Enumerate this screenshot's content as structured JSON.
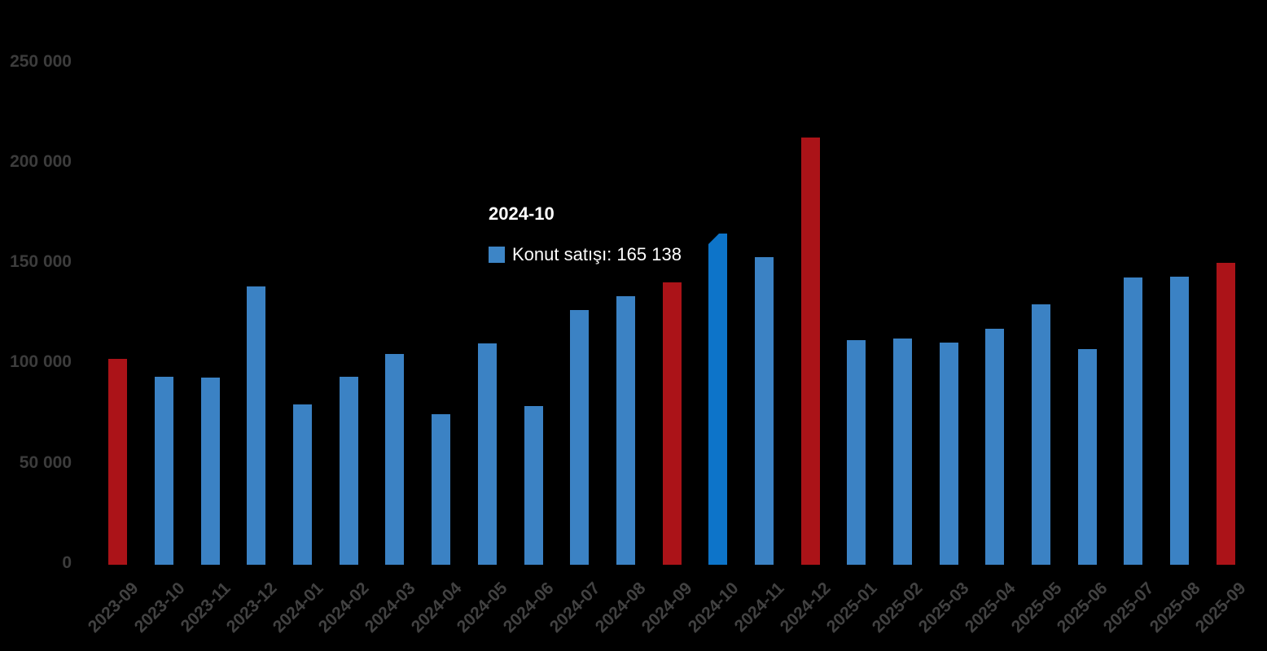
{
  "style": {
    "background": "#000000",
    "bar_blue": "#3b82c4",
    "bar_red": "#ab1318",
    "bar_hover": "#0d74c9",
    "swatch_color": "#3d85c6",
    "y_axis_text_color": "#3c3c3c",
    "x_axis_text_color": "#424242",
    "tooltip_text_color": "#ffffff"
  },
  "chart_data": {
    "type": "bar",
    "title": "",
    "xlabel": "",
    "ylabel": "",
    "grid": false,
    "legend_position": "none",
    "background": "black",
    "categories": [
      "2023-09",
      "2023-10",
      "2023-11",
      "2023-12",
      "2024-01",
      "2024-02",
      "2024-03",
      "2024-04",
      "2024-05",
      "2024-06",
      "2024-07",
      "2024-08",
      "2024-09",
      "2024-10",
      "2024-11",
      "2024-12",
      "2025-01",
      "2025-02",
      "2025-03",
      "2025-04",
      "2025-05",
      "2025-06",
      "2025-07",
      "2025-08",
      "2025-09"
    ],
    "series": [
      {
        "name": "Konut satışı",
        "values": [
          102500,
          93500,
          93300,
          138600,
          80000,
          93500,
          105000,
          74900,
          110200,
          79000,
          127000,
          134000,
          140900,
          165138,
          153300,
          213000,
          112000,
          112600,
          110600,
          117800,
          129900,
          107500,
          143100,
          143500,
          150600
        ]
      }
    ],
    "values": [
      102500,
      93500,
      93300,
      138600,
      80000,
      93500,
      105000,
      74900,
      110200,
      79000,
      127000,
      134000,
      140900,
      165138,
      153300,
      213000,
      112000,
      112600,
      110600,
      117800,
      129900,
      107500,
      143100,
      143500,
      150600
    ],
    "roles": [
      "september",
      "normal",
      "normal",
      "normal",
      "normal",
      "normal",
      "normal",
      "normal",
      "normal",
      "normal",
      "normal",
      "normal",
      "september",
      "hover",
      "normal",
      "september",
      "normal",
      "normal",
      "normal",
      "normal",
      "normal",
      "normal",
      "normal",
      "normal",
      "september"
    ],
    "ylim": [
      0,
      250000
    ],
    "yticks": [
      0,
      50000,
      100000,
      150000,
      200000,
      250000
    ],
    "ytick_labels": [
      "0",
      "50 000",
      "100 000",
      "150 000",
      "200 000",
      "250 000"
    ],
    "tooltip": {
      "category": "2024-10",
      "series": "Konut satışı",
      "value": 165138,
      "value_display": "165 138",
      "text": "Konut satışı: 165 138"
    }
  }
}
